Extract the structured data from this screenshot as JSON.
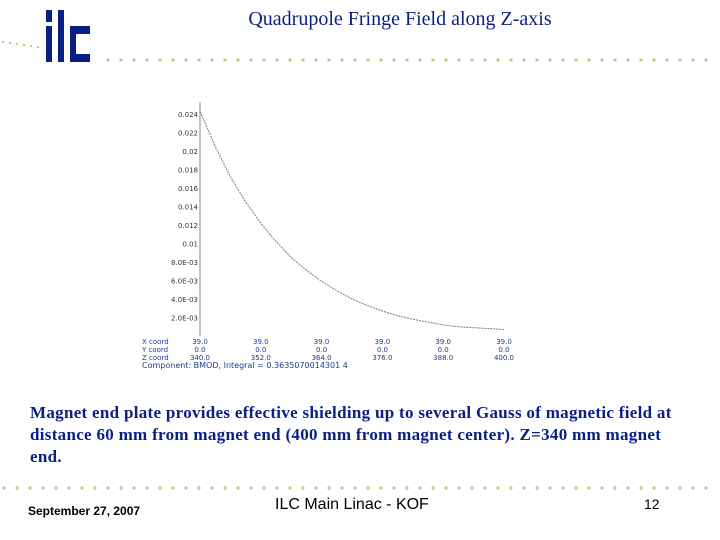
{
  "header": {
    "title": "Quadrupole Fringe Field along Z-axis",
    "logo_text": "ilc",
    "accent_color": "#0a1f86",
    "dot_color": "#c8c48c"
  },
  "caption": "Magnet end plate provides effective shielding up to several Gauss of magnetic field at distance 60 mm from magnet end (400 mm from magnet center).  Z=340 mm magnet end.",
  "footer": {
    "date": "September 27, 2007",
    "center": "ILC Main Linac - KOF",
    "page": "12"
  },
  "chart_data": {
    "type": "line",
    "ylim": [
      0,
      0.024
    ],
    "y_ticks": [
      "0.024",
      "0.022",
      "0.02",
      "0.018",
      "0.016",
      "0.014",
      "0.012",
      "0.01",
      "8.0E-03",
      "6.0E-03",
      "4.0E-03",
      "2.0E-03"
    ],
    "y_tick_values": [
      0.024,
      0.022,
      0.02,
      0.018,
      0.016,
      0.014,
      0.012,
      0.01,
      0.008,
      0.006,
      0.004,
      0.002
    ],
    "coord_rows": [
      {
        "label": "X coord",
        "values": [
          "39.0",
          "39.0",
          "39.0",
          "39.0",
          "39.0",
          "39.0"
        ]
      },
      {
        "label": "Y coord",
        "values": [
          "0.0",
          "0.0",
          "0.0",
          "0.0",
          "0.0",
          "0.0"
        ]
      },
      {
        "label": "Z coord",
        "values": [
          "340.0",
          "352.0",
          "364.0",
          "376.0",
          "388.0",
          "400.0"
        ]
      }
    ],
    "z_values": [
      340,
      352,
      364,
      376,
      388,
      400
    ],
    "xlim": [
      340,
      400
    ],
    "component_label": "Component: BMOD, Integral = 0.3635070014301 4",
    "series": [
      {
        "x": [
          340,
          343,
          346,
          349,
          352,
          355,
          358,
          361,
          364,
          367,
          370,
          373,
          376,
          379,
          382,
          385,
          388,
          391,
          394,
          397,
          400
        ],
        "y": [
          0.0243,
          0.0205,
          0.0172,
          0.0145,
          0.0122,
          0.0102,
          0.0085,
          0.0071,
          0.0059,
          0.0049,
          0.004,
          0.0033,
          0.0027,
          0.0022,
          0.0018,
          0.0015,
          0.0012,
          0.001,
          0.0009,
          0.0008,
          0.0007
        ]
      }
    ]
  }
}
